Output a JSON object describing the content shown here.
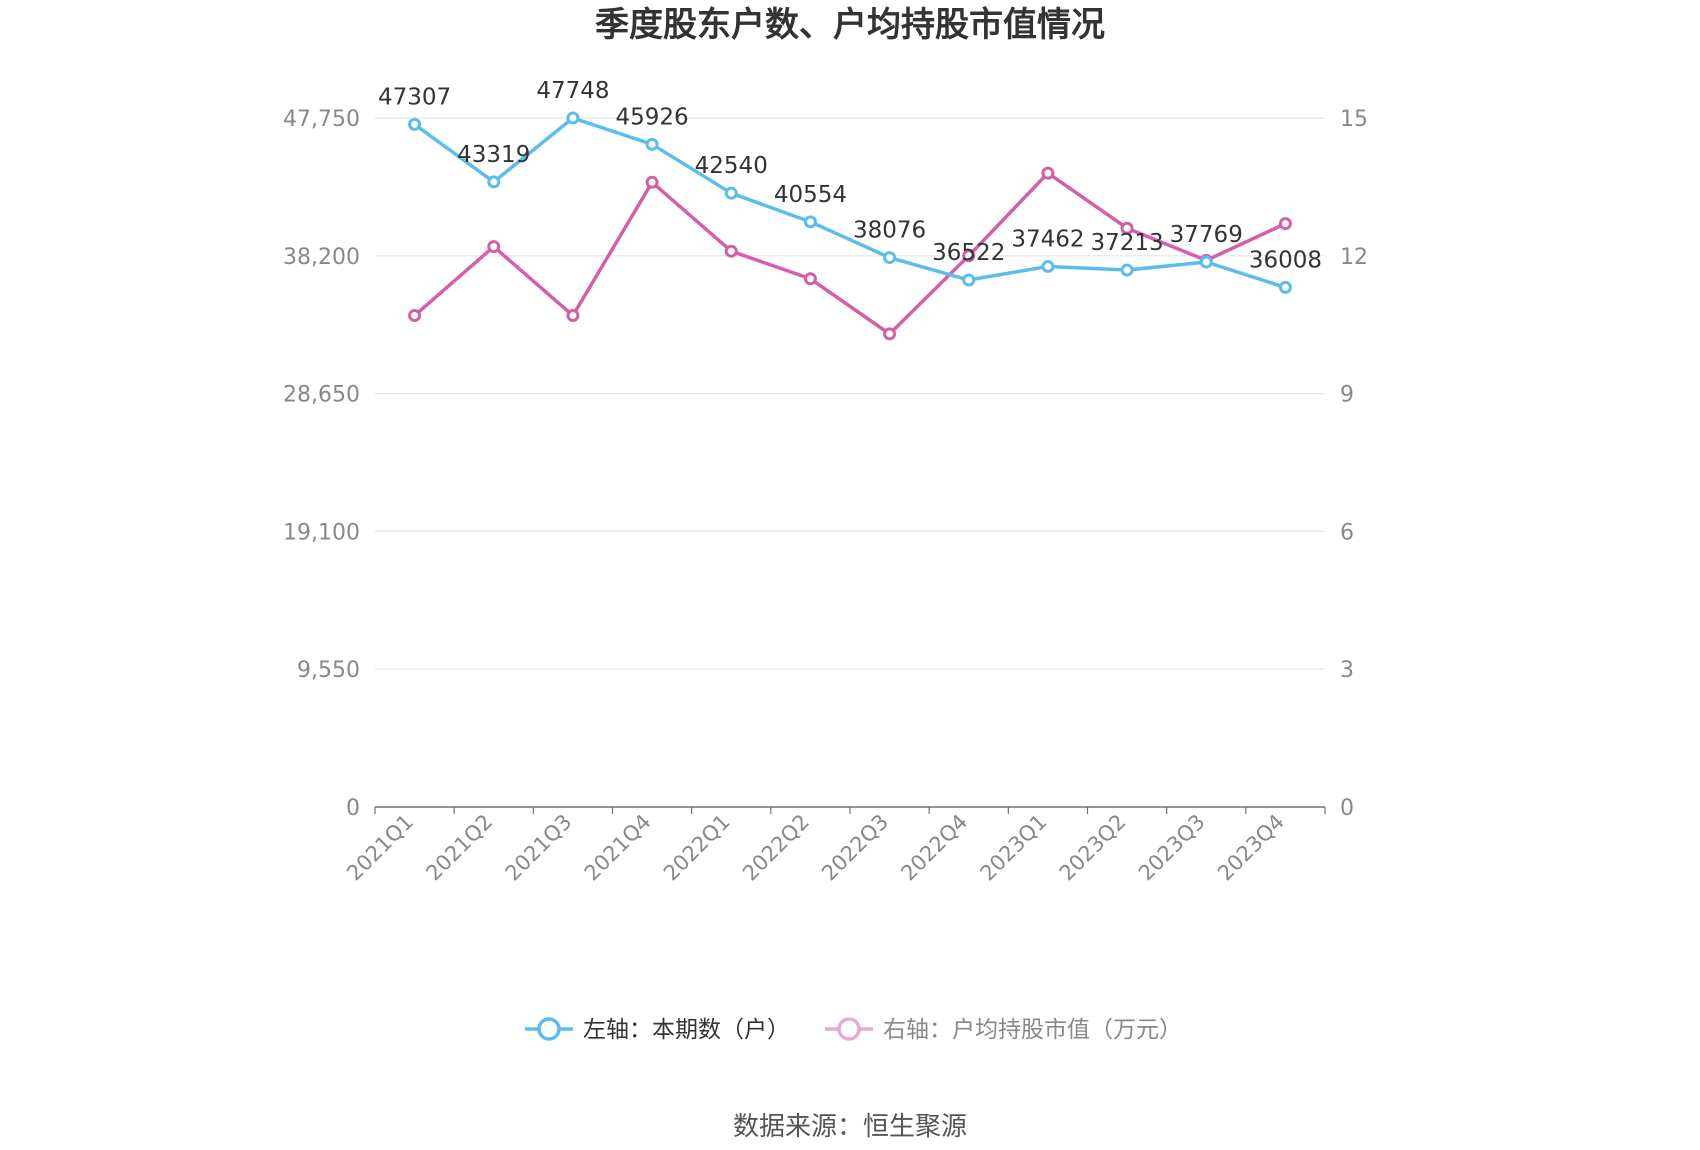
{
  "chart_data": {
    "type": "line",
    "title": "季度股东户数、户均持股市值情况",
    "categories": [
      "2021Q1",
      "2021Q2",
      "2021Q3",
      "2021Q4",
      "2022Q1",
      "2022Q2",
      "2022Q3",
      "2022Q4",
      "2023Q1",
      "2023Q2",
      "2023Q3",
      "2023Q4"
    ],
    "left_axis": {
      "ylim": [
        0,
        47750
      ],
      "ticks": [
        0,
        9550,
        19100,
        28650,
        38200,
        47750
      ],
      "tick_labels": [
        "0",
        "9,550",
        "19,100",
        "28,650",
        "38,200",
        "47,750"
      ]
    },
    "right_axis": {
      "ylim": [
        0,
        15
      ],
      "ticks": [
        0,
        3,
        6,
        9,
        12,
        15
      ],
      "tick_labels": [
        "0",
        "3",
        "6",
        "9",
        "12",
        "15"
      ]
    },
    "series": [
      {
        "name": "左轴：本期数（户）",
        "axis": "left",
        "color": "#5bbcee",
        "values": [
          47307,
          43319,
          47748,
          45926,
          42540,
          40554,
          38076,
          36522,
          37462,
          37213,
          37769,
          36008
        ],
        "labels": [
          "47307",
          "43319",
          "47748",
          "45926",
          "42540",
          "40554",
          "38076",
          "36522",
          "37462",
          "37213",
          "37769",
          "36008"
        ]
      },
      {
        "name": "右轴：户均持股市值（万元）",
        "axis": "right",
        "color": "#d45fa8",
        "values": [
          10.7,
          12.2,
          10.7,
          13.6,
          12.1,
          11.5,
          10.3,
          12.0,
          13.8,
          12.6,
          11.9,
          12.7
        ]
      }
    ],
    "grid": true,
    "legend_position": "bottom"
  },
  "source_text": "数据来源：恒生聚源"
}
